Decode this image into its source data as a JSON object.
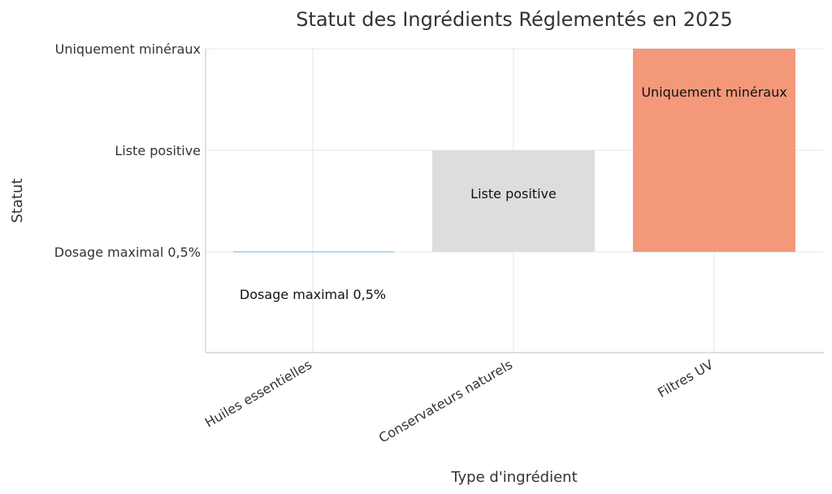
{
  "chart_data": {
    "type": "bar",
    "title": "Statut des Ingrédients Réglementés en 2025",
    "xlabel": "Type d'ingrédient",
    "ylabel": "Statut",
    "categories": [
      "Huiles essentielles",
      "Conservateurs naturels",
      "Filtres UV"
    ],
    "values": [
      1,
      2,
      3
    ],
    "y_ticks": [
      1,
      2,
      3
    ],
    "y_tick_labels": [
      "Dosage maximal 0,5%",
      "Liste positive",
      "Uniquement minéraux"
    ],
    "ylim": [
      0,
      3
    ],
    "data_labels": [
      "Dosage maximal 0,5%",
      "Liste positive",
      "Uniquement minéraux"
    ],
    "colors": [
      "#9ecae1",
      "#dddddd",
      "#f4987a"
    ],
    "grid": true,
    "legend": "none"
  }
}
